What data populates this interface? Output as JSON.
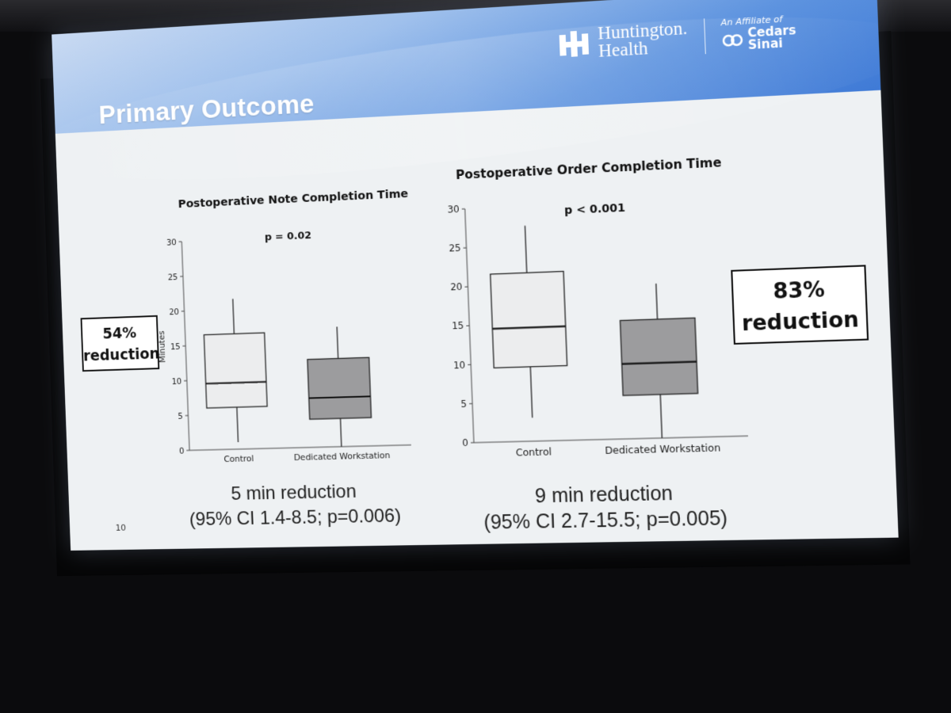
{
  "slide": {
    "title": "Primary Outcome",
    "page_number": "10",
    "logo": {
      "brand_line1": "Huntington.",
      "brand_line2": "Health",
      "affiliate_prefix": "An Affiliate of",
      "affiliate_line1": "Cedars",
      "affiliate_line2": "Sinai"
    }
  },
  "colors": {
    "banner": "#3f7ad6",
    "control_box": "#ecedee",
    "workstation_box": "#9c9c9e",
    "ink": "#111111"
  },
  "left_panel": {
    "callout_pct": "54%",
    "callout_text": "reduction",
    "caption_line1": "5 min reduction",
    "caption_line2": "(95% CI 1.4-8.5; p=0.006)"
  },
  "right_panel": {
    "callout_pct": "83%",
    "callout_text": "reduction",
    "caption_line1": "9 min reduction",
    "caption_line2": "(95% CI 2.7-15.5; p=0.005)"
  },
  "chart_data": [
    {
      "type": "box",
      "title": "Postoperative Note Completion Time",
      "annotation": "p = 0.02",
      "ylabel": "Minutes",
      "xlabel": "",
      "ylim": [
        0,
        30
      ],
      "yticks": [
        0,
        5,
        10,
        15,
        20,
        25,
        30
      ],
      "categories": [
        "Control",
        "Dedicated Workstation"
      ],
      "boxes": [
        {
          "name": "Control",
          "min": 1,
          "q1": 6,
          "median": 9.5,
          "q3": 16.5,
          "max": 21.5,
          "color": "#ecedee"
        },
        {
          "name": "Dedicated Workstation",
          "min": 0,
          "q1": 4,
          "median": 7,
          "q3": 12.5,
          "max": 17,
          "color": "#9c9c9e"
        }
      ]
    },
    {
      "type": "box",
      "title": "Postoperative Order Completion Time",
      "annotation": "p < 0.001",
      "ylabel": "",
      "xlabel": "",
      "ylim": [
        0,
        30
      ],
      "yticks": [
        0,
        5,
        10,
        15,
        20,
        25,
        30
      ],
      "categories": [
        "Control",
        "Dedicated Workstation"
      ],
      "boxes": [
        {
          "name": "Control",
          "min": 3,
          "q1": 9.5,
          "median": 14.5,
          "q3": 21.5,
          "max": 27.5,
          "color": "#ecedee"
        },
        {
          "name": "Dedicated Workstation",
          "min": 0,
          "q1": 5.5,
          "median": 9.5,
          "q3": 15,
          "max": 19.5,
          "color": "#9c9c9e"
        }
      ]
    }
  ]
}
